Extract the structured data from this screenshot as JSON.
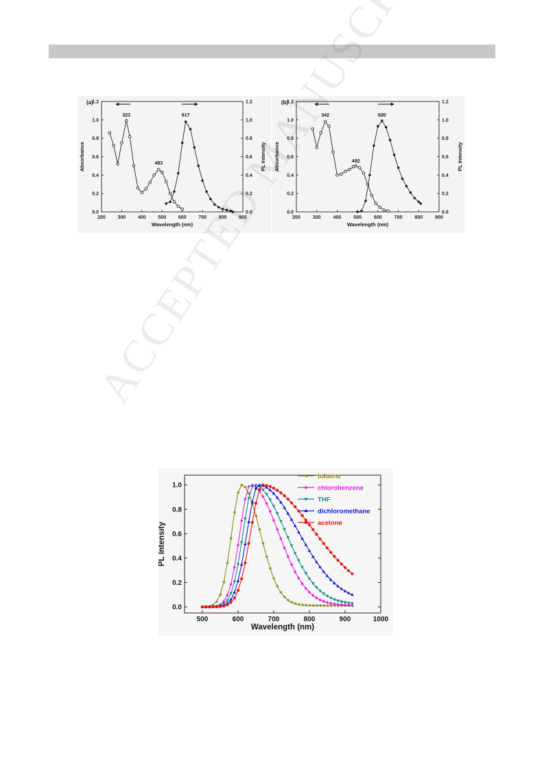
{
  "watermark": "ACCEPTED MANUSCRIPT",
  "chart_data": [
    {
      "type": "line",
      "panel_label": "(a)",
      "xlabel": "Wavelength (nm)",
      "ylabel": "Absorbance",
      "y2label": "PL Intensity",
      "xlim": [
        200,
        900
      ],
      "ylim": [
        0,
        1.2
      ],
      "xticks": [
        200,
        300,
        400,
        500,
        600,
        700,
        800,
        900
      ],
      "yticks": [
        0.0,
        0.2,
        0.4,
        0.6,
        0.8,
        1.0,
        1.2
      ],
      "annotations": [
        {
          "text": "323",
          "x": 323,
          "y": 1.02
        },
        {
          "text": "483",
          "x": 483,
          "y": 0.5
        },
        {
          "text": "617",
          "x": 617,
          "y": 1.02
        }
      ],
      "series": [
        {
          "marker": "open-circle",
          "x": [
            240,
            260,
            280,
            300,
            323,
            340,
            360,
            380,
            400,
            420,
            440,
            460,
            483,
            500,
            520,
            540,
            560,
            580,
            600
          ],
          "values": [
            0.86,
            0.72,
            0.52,
            0.75,
            0.99,
            0.82,
            0.5,
            0.26,
            0.21,
            0.25,
            0.32,
            0.4,
            0.46,
            0.43,
            0.33,
            0.2,
            0.11,
            0.06,
            0.03
          ]
        },
        {
          "marker": "filled-circle",
          "x": [
            520,
            540,
            560,
            580,
            600,
            617,
            640,
            660,
            680,
            700,
            720,
            740,
            760,
            780,
            800,
            820,
            840,
            850
          ],
          "values": [
            0.09,
            0.11,
            0.22,
            0.42,
            0.75,
            0.98,
            0.9,
            0.7,
            0.5,
            0.34,
            0.22,
            0.14,
            0.08,
            0.05,
            0.03,
            0.02,
            0.01,
            0.0
          ]
        }
      ]
    },
    {
      "type": "line",
      "panel_label": "(b)",
      "xlabel": "Wavelength (nm)",
      "ylabel": "Absorbance",
      "y2label": "PL Intensity",
      "xlim": [
        200,
        900
      ],
      "ylim": [
        0,
        1.2
      ],
      "xticks": [
        200,
        300,
        400,
        500,
        600,
        700,
        800,
        900
      ],
      "yticks": [
        0.0,
        0.2,
        0.4,
        0.6,
        0.8,
        1.0,
        1.2
      ],
      "annotations": [
        {
          "text": "342",
          "x": 342,
          "y": 1.02
        },
        {
          "text": "492",
          "x": 492,
          "y": 0.52
        },
        {
          "text": "620",
          "x": 620,
          "y": 1.02
        }
      ],
      "series": [
        {
          "marker": "open-circle",
          "x": [
            280,
            300,
            320,
            342,
            360,
            380,
            400,
            420,
            440,
            460,
            480,
            492,
            510,
            530,
            550,
            570,
            590,
            610,
            630,
            650
          ],
          "values": [
            0.9,
            0.7,
            0.86,
            0.98,
            0.93,
            0.65,
            0.4,
            0.41,
            0.44,
            0.46,
            0.49,
            0.5,
            0.48,
            0.42,
            0.3,
            0.18,
            0.09,
            0.05,
            0.02,
            0.01
          ]
        },
        {
          "marker": "filled-circle",
          "x": [
            500,
            520,
            540,
            560,
            580,
            600,
            620,
            640,
            660,
            680,
            700,
            720,
            740,
            760,
            780,
            800,
            810
          ],
          "values": [
            0.0,
            0.01,
            0.12,
            0.4,
            0.72,
            0.93,
            0.99,
            0.92,
            0.78,
            0.62,
            0.48,
            0.36,
            0.28,
            0.21,
            0.15,
            0.11,
            0.09
          ]
        }
      ]
    },
    {
      "type": "line",
      "xlabel": "Wavelength (nm)",
      "ylabel": "PL Intensity",
      "xlim": [
        450,
        1000
      ],
      "ylim": [
        -0.05,
        1.08
      ],
      "xticks": [
        500,
        600,
        700,
        800,
        900,
        1000
      ],
      "yticks": [
        0.0,
        0.2,
        0.4,
        0.6,
        0.8,
        1.0
      ],
      "legend": "top-right",
      "series": [
        {
          "name": "toluene",
          "color": "#8c8c14",
          "marker": "left-triangle",
          "peak": 610,
          "sigma_left": 28,
          "sigma_right": 52,
          "tail": 0.015
        },
        {
          "name": "chlorobenzene",
          "color": "#e020e0",
          "marker": "diamond",
          "peak": 635,
          "sigma_left": 30,
          "sigma_right": 78,
          "tail": 0.02
        },
        {
          "name": "THF",
          "color": "#108a8a",
          "marker": "down-triangle",
          "peak": 645,
          "sigma_left": 31,
          "sigma_right": 88,
          "tail": 0.035
        },
        {
          "name": "dichloromethane",
          "color": "#1414d0",
          "marker": "up-triangle",
          "peak": 658,
          "sigma_left": 33,
          "sigma_right": 110,
          "tail": 0.07
        },
        {
          "name": "acetone",
          "color": "#e01414",
          "marker": "circle",
          "peak": 670,
          "sigma_left": 35,
          "sigma_right": 140,
          "tail": 0.15
        }
      ]
    }
  ]
}
